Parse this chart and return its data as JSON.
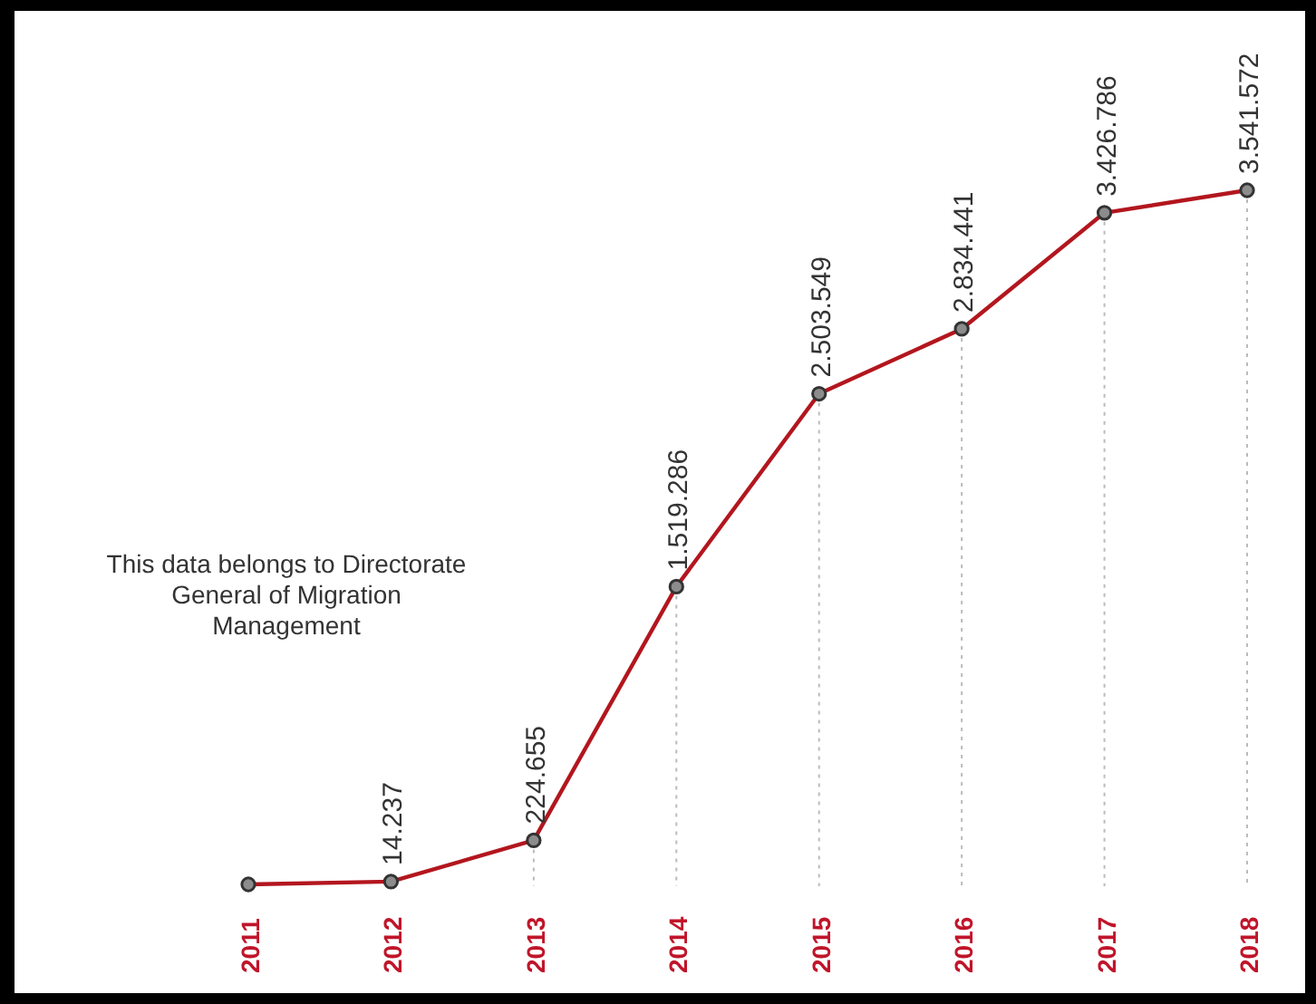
{
  "chart_data": {
    "type": "line",
    "categories": [
      "2011",
      "2012",
      "2013",
      "2014",
      "2015",
      "2016",
      "2017",
      "2018"
    ],
    "series": [
      {
        "color": "#b3161e",
        "values": [
          0,
          14237,
          224655,
          1519286,
          2503549,
          2834441,
          3426786,
          3541572
        ],
        "value_labels": [
          null,
          "14.237",
          "224.655",
          "1.519.286",
          "2.503.549",
          "2.834.441",
          "3.426.786",
          "3.541.572"
        ]
      }
    ],
    "grid": "x",
    "marker": "circle",
    "line_style": "solid",
    "annotations": [
      "This data belongs to Directorate General of Migration Management"
    ]
  }
}
